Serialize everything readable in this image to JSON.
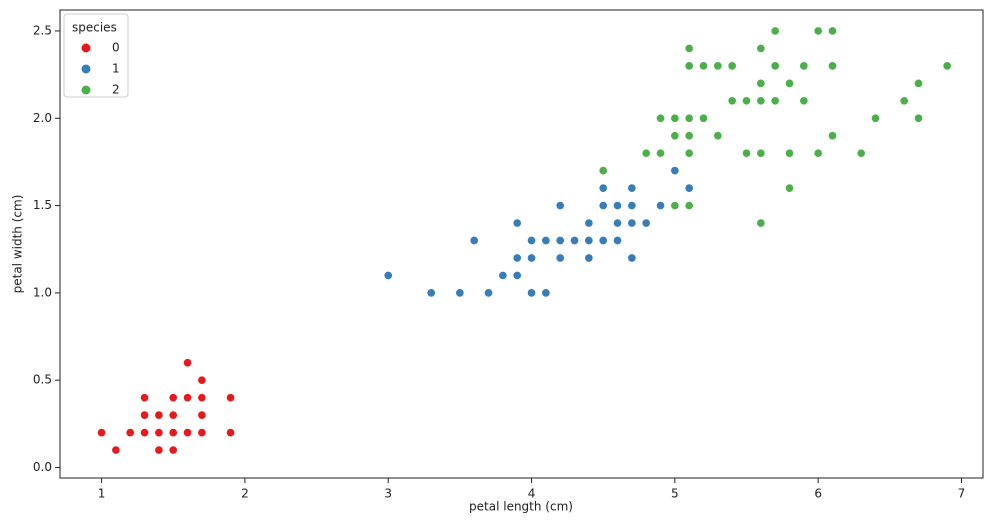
{
  "chart_data": {
    "type": "scatter",
    "x_label": "petal length (cm)",
    "y_label": "petal width (cm)",
    "legend_title": "species",
    "legend_position": "upper left",
    "xlim": [
      0.71,
      7.15
    ],
    "ylim": [
      -0.06,
      2.62
    ],
    "xticks": [
      1,
      2,
      3,
      4,
      5,
      6,
      7
    ],
    "yticks": [
      {
        "value": 0,
        "label": "0.0"
      },
      {
        "value": 0.5,
        "label": "0.5"
      },
      {
        "value": 1,
        "label": "1.0"
      },
      {
        "value": 1.5,
        "label": "1.5"
      },
      {
        "value": 2,
        "label": "2.0"
      },
      {
        "value": 2.5,
        "label": "2.5"
      }
    ],
    "series": [
      {
        "name": "0",
        "color": "#e41a1c",
        "x": [
          1.4,
          1.4,
          1.3,
          1.5,
          1.4,
          1.7,
          1.4,
          1.5,
          1.4,
          1.5,
          1.5,
          1.6,
          1.4,
          1.1,
          1.2,
          1.5,
          1.3,
          1.4,
          1.7,
          1.5,
          1.7,
          1.5,
          1.0,
          1.7,
          1.9,
          1.6,
          1.6,
          1.5,
          1.4,
          1.6,
          1.6,
          1.5,
          1.5,
          1.4,
          1.5,
          1.2,
          1.3,
          1.4,
          1.3,
          1.5,
          1.3,
          1.3,
          1.3,
          1.6,
          1.9,
          1.4,
          1.6,
          1.4,
          1.5,
          1.4
        ],
        "values": [
          0.2,
          0.2,
          0.2,
          0.2,
          0.2,
          0.4,
          0.3,
          0.2,
          0.2,
          0.1,
          0.2,
          0.2,
          0.1,
          0.1,
          0.2,
          0.4,
          0.4,
          0.3,
          0.3,
          0.3,
          0.2,
          0.4,
          0.2,
          0.5,
          0.2,
          0.2,
          0.4,
          0.2,
          0.2,
          0.2,
          0.2,
          0.4,
          0.1,
          0.2,
          0.2,
          0.2,
          0.2,
          0.1,
          0.2,
          0.2,
          0.3,
          0.3,
          0.2,
          0.6,
          0.4,
          0.3,
          0.2,
          0.2,
          0.2,
          0.2
        ]
      },
      {
        "name": "1",
        "color": "#377eb8",
        "x": [
          4.7,
          4.5,
          4.9,
          4.0,
          4.6,
          4.5,
          4.7,
          3.3,
          4.6,
          3.9,
          3.5,
          4.2,
          4.0,
          4.7,
          3.6,
          4.4,
          4.5,
          4.1,
          4.5,
          3.9,
          4.8,
          4.0,
          4.9,
          4.7,
          4.3,
          4.4,
          4.8,
          5.0,
          4.5,
          3.5,
          3.8,
          3.7,
          3.9,
          5.1,
          4.5,
          4.5,
          4.7,
          4.4,
          4.1,
          4.0,
          4.4,
          4.6,
          4.0,
          3.3,
          4.2,
          4.2,
          4.2,
          4.3,
          3.0,
          4.1
        ],
        "values": [
          1.4,
          1.5,
          1.5,
          1.3,
          1.5,
          1.3,
          1.6,
          1.0,
          1.3,
          1.4,
          1.0,
          1.5,
          1.0,
          1.4,
          1.3,
          1.4,
          1.5,
          1.0,
          1.5,
          1.1,
          1.8,
          1.3,
          1.5,
          1.2,
          1.3,
          1.4,
          1.4,
          1.7,
          1.5,
          1.0,
          1.1,
          1.0,
          1.2,
          1.6,
          1.5,
          1.6,
          1.5,
          1.3,
          1.3,
          1.3,
          1.2,
          1.4,
          1.2,
          1.0,
          1.3,
          1.2,
          1.3,
          1.3,
          1.1,
          1.3
        ]
      },
      {
        "name": "2",
        "color": "#4daf4a",
        "x": [
          6.0,
          5.1,
          5.9,
          5.6,
          5.8,
          6.6,
          4.5,
          6.3,
          5.8,
          6.1,
          5.1,
          5.3,
          5.5,
          5.0,
          5.1,
          5.3,
          5.5,
          6.7,
          6.9,
          5.0,
          5.7,
          4.9,
          6.7,
          4.9,
          5.7,
          6.0,
          4.8,
          4.9,
          5.6,
          5.8,
          6.1,
          6.4,
          5.6,
          5.1,
          5.6,
          6.1,
          5.6,
          5.5,
          4.8,
          5.4,
          5.6,
          5.1,
          5.1,
          5.9,
          5.7,
          5.2,
          5.0,
          5.2,
          5.4,
          5.1
        ],
        "values": [
          2.5,
          1.9,
          2.1,
          1.8,
          2.2,
          2.1,
          1.7,
          1.8,
          1.8,
          2.5,
          2.0,
          1.9,
          2.1,
          2.0,
          2.4,
          2.3,
          1.8,
          2.2,
          2.3,
          1.5,
          2.3,
          2.0,
          2.0,
          1.8,
          2.1,
          1.8,
          1.8,
          1.8,
          2.1,
          1.6,
          1.9,
          2.0,
          2.2,
          1.5,
          1.4,
          2.3,
          2.4,
          1.8,
          1.8,
          2.1,
          2.4,
          2.3,
          1.9,
          2.3,
          2.5,
          2.3,
          1.9,
          2.0,
          2.3,
          1.8
        ]
      }
    ]
  }
}
